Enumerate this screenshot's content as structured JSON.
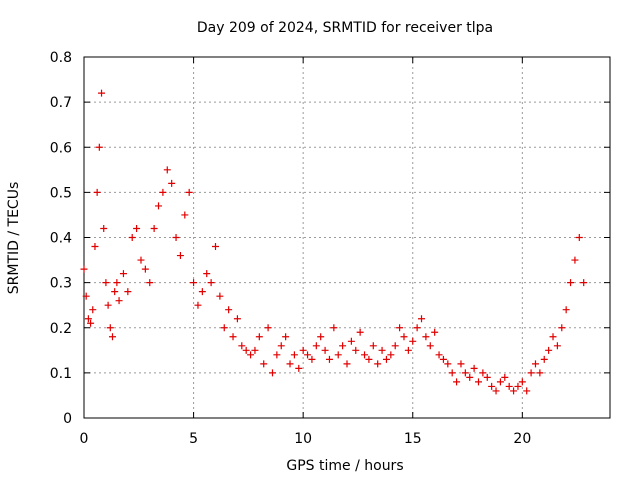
{
  "chart_data": {
    "type": "scatter",
    "title": "Day 209 of 2024, SRMTID for receiver tlpa",
    "xlabel": "GPS time / hours",
    "ylabel": "SRMTID / TECUs",
    "xlim": [
      0,
      24
    ],
    "ylim": [
      0,
      0.8
    ],
    "xticks": [
      0,
      5,
      10,
      15,
      20
    ],
    "xtick_labels": [
      "0",
      "5",
      "10",
      "15",
      "20"
    ],
    "yticks": [
      0,
      0.1,
      0.2,
      0.3,
      0.4,
      0.5,
      0.6,
      0.7,
      0.8
    ],
    "ytick_labels": [
      "0",
      "0.1",
      "0.2",
      "0.3",
      "0.4",
      "0.5",
      "0.6",
      "0.7",
      "0.8"
    ],
    "grid": true,
    "marker": "+",
    "color": "#e00000",
    "series": [
      {
        "name": "SRMTID",
        "x": [
          0.0,
          0.1,
          0.2,
          0.3,
          0.4,
          0.5,
          0.6,
          0.7,
          0.8,
          0.9,
          1.0,
          1.1,
          1.2,
          1.3,
          1.4,
          1.5,
          1.6,
          1.8,
          2.0,
          2.2,
          2.4,
          2.6,
          2.8,
          3.0,
          3.2,
          3.4,
          3.6,
          3.8,
          4.0,
          4.2,
          4.4,
          4.6,
          4.8,
          5.0,
          5.2,
          5.4,
          5.6,
          5.8,
          6.0,
          6.2,
          6.4,
          6.6,
          6.8,
          7.0,
          7.2,
          7.4,
          7.6,
          7.8,
          8.0,
          8.2,
          8.4,
          8.6,
          8.8,
          9.0,
          9.2,
          9.4,
          9.6,
          9.8,
          10.0,
          10.2,
          10.4,
          10.6,
          10.8,
          11.0,
          11.2,
          11.4,
          11.6,
          11.8,
          12.0,
          12.2,
          12.4,
          12.6,
          12.8,
          13.0,
          13.2,
          13.4,
          13.6,
          13.8,
          14.0,
          14.2,
          14.4,
          14.6,
          14.8,
          15.0,
          15.2,
          15.4,
          15.6,
          15.8,
          16.0,
          16.2,
          16.4,
          16.6,
          16.8,
          17.0,
          17.2,
          17.4,
          17.6,
          17.8,
          18.0,
          18.2,
          18.4,
          18.6,
          18.8,
          19.0,
          19.2,
          19.4,
          19.6,
          19.8,
          20.0,
          20.2,
          20.4,
          20.6,
          20.8,
          21.0,
          21.2,
          21.4,
          21.6,
          21.8,
          22.0,
          22.2,
          22.4,
          22.6,
          22.8
        ],
        "values": [
          0.33,
          0.27,
          0.22,
          0.21,
          0.24,
          0.38,
          0.5,
          0.6,
          0.72,
          0.42,
          0.3,
          0.25,
          0.2,
          0.18,
          0.28,
          0.3,
          0.26,
          0.32,
          0.28,
          0.4,
          0.42,
          0.35,
          0.33,
          0.3,
          0.42,
          0.47,
          0.5,
          0.55,
          0.52,
          0.4,
          0.36,
          0.45,
          0.5,
          0.3,
          0.25,
          0.28,
          0.32,
          0.3,
          0.38,
          0.27,
          0.2,
          0.24,
          0.18,
          0.22,
          0.16,
          0.15,
          0.14,
          0.15,
          0.18,
          0.12,
          0.2,
          0.1,
          0.14,
          0.16,
          0.18,
          0.12,
          0.14,
          0.11,
          0.15,
          0.14,
          0.13,
          0.16,
          0.18,
          0.15,
          0.13,
          0.2,
          0.14,
          0.16,
          0.12,
          0.17,
          0.15,
          0.19,
          0.14,
          0.13,
          0.16,
          0.12,
          0.15,
          0.13,
          0.14,
          0.16,
          0.2,
          0.18,
          0.15,
          0.17,
          0.2,
          0.22,
          0.18,
          0.16,
          0.19,
          0.14,
          0.13,
          0.12,
          0.1,
          0.08,
          0.12,
          0.1,
          0.09,
          0.11,
          0.08,
          0.1,
          0.09,
          0.07,
          0.06,
          0.08,
          0.09,
          0.07,
          0.06,
          0.07,
          0.08,
          0.06,
          0.1,
          0.12,
          0.1,
          0.13,
          0.15,
          0.18,
          0.16,
          0.2,
          0.24,
          0.3,
          0.35,
          0.4,
          0.3
        ]
      }
    ]
  }
}
